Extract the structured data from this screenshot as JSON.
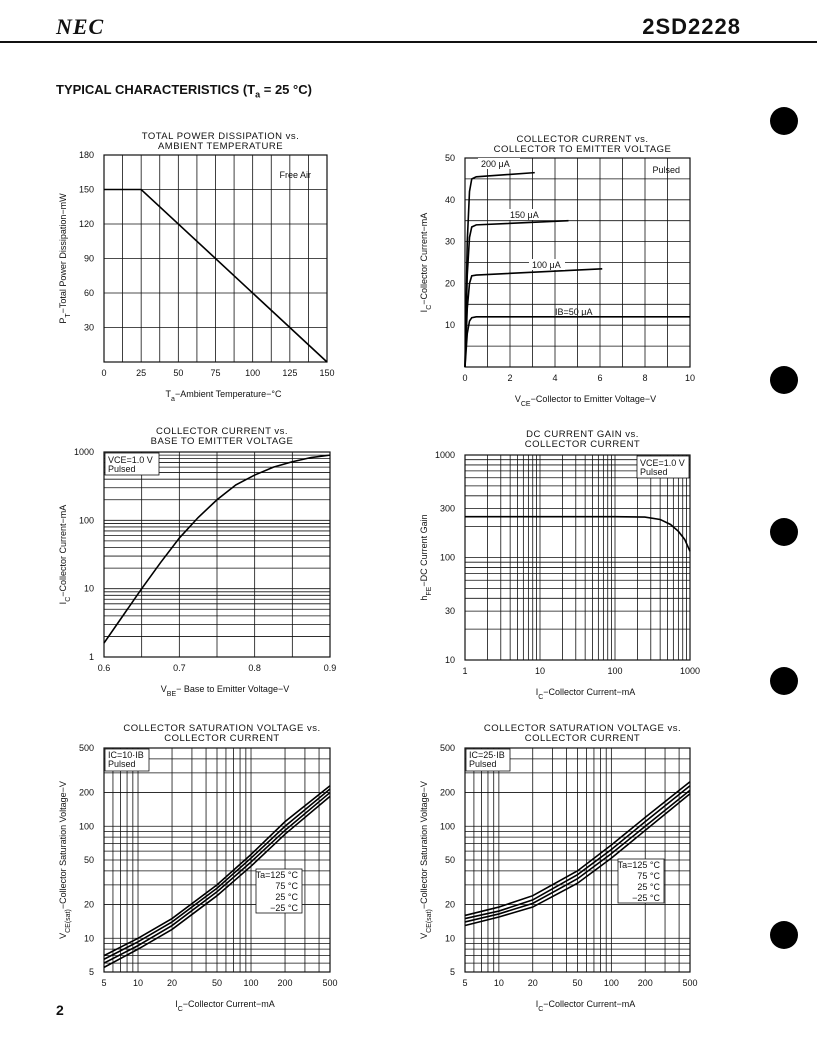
{
  "header": {
    "brand": "NEC",
    "part_number": "2SD2228"
  },
  "section_title": "TYPICAL CHARACTERISTICS (T",
  "section_title_sub": "a",
  "section_title_tail": " = 25 °C)",
  "page_number": "2",
  "chart_data": [
    {
      "id": "power-dissipation",
      "type": "line",
      "title": [
        "TOTAL POWER DISSIPATION vs.",
        "AMBIENT TEMPERATURE"
      ],
      "xlabel": "Ta−Ambient Temperature−°C",
      "ylabel": "PT−Total Power Dissipation−mW",
      "xscale": "linear",
      "yscale": "linear",
      "xlim": [
        0,
        150
      ],
      "ylim": [
        0,
        180
      ],
      "xticks": [
        0,
        25,
        50,
        75,
        100,
        125,
        150
      ],
      "yticks": [
        30,
        60,
        90,
        120,
        150,
        180
      ],
      "annotations": [
        "Free Air"
      ],
      "series": [
        {
          "x": [
            0,
            25,
            150
          ],
          "y": [
            150,
            150,
            0
          ]
        }
      ]
    },
    {
      "id": "ic-vs-vce",
      "type": "line",
      "title": [
        "COLLECTOR CURRENT vs.",
        "COLLECTOR TO EMITTER VOLTAGE"
      ],
      "xlabel": "VCE−Collector to Emitter Voltage−V",
      "ylabel": "IC−Collector Current−mA",
      "xscale": "linear",
      "yscale": "linear",
      "xlim": [
        0,
        10
      ],
      "ylim": [
        0,
        50
      ],
      "xticks": [
        0,
        2,
        4,
        6,
        8,
        10
      ],
      "yticks": [
        10,
        20,
        30,
        40,
        50
      ],
      "annotations": [
        "Pulsed"
      ],
      "series": [
        {
          "name": "IB=50 μA",
          "x": [
            0,
            0.1,
            0.2,
            0.3,
            0.5,
            10
          ],
          "y": [
            0,
            8,
            11,
            11.8,
            12,
            12
          ]
        },
        {
          "name": "100 μA",
          "x": [
            0,
            0.1,
            0.2,
            0.3,
            0.5,
            6.1
          ],
          "y": [
            0,
            14,
            20,
            21.8,
            22,
            23.5
          ]
        },
        {
          "name": "150 μA",
          "x": [
            0,
            0.1,
            0.2,
            0.3,
            0.5,
            4.6
          ],
          "y": [
            0,
            22,
            31,
            33.5,
            34,
            35
          ]
        },
        {
          "name": "200 μA",
          "x": [
            0,
            0.1,
            0.2,
            0.3,
            0.5,
            3.1
          ],
          "y": [
            0,
            30,
            42,
            45,
            45.5,
            46.5
          ]
        }
      ]
    },
    {
      "id": "ic-vs-vbe",
      "type": "line",
      "title": [
        "COLLECTOR CURRENT vs.",
        "BASE TO EMITTER VOLTAGE"
      ],
      "xlabel": "VBE−Base to Emitter Voltage−V",
      "ylabel": "IC−Collector Current−mA",
      "xscale": "linear",
      "yscale": "log",
      "xlim": [
        0.6,
        0.9
      ],
      "ylim": [
        1,
        1000
      ],
      "xticks": [
        0.6,
        0.7,
        0.8,
        0.9
      ],
      "yticks": [
        1,
        10,
        100,
        1000
      ],
      "annotations": [
        "VCE=1.0 V",
        "Pulsed"
      ],
      "series": [
        {
          "x": [
            0.6,
            0.625,
            0.65,
            0.675,
            0.7,
            0.725,
            0.75,
            0.775,
            0.8,
            0.825,
            0.85,
            0.875,
            0.9
          ],
          "y": [
            1.6,
            4,
            10,
            24,
            55,
            110,
            200,
            330,
            460,
            600,
            720,
            830,
            900
          ]
        }
      ]
    },
    {
      "id": "hfe-vs-ic",
      "type": "line",
      "title": [
        "DC CURRENT GAIN vs.",
        "COLLECTOR CURRENT"
      ],
      "xlabel": "IC−Collector Current−mA",
      "ylabel": "hFE−DC Current Gain",
      "xscale": "log",
      "yscale": "log",
      "xlim": [
        1,
        1000
      ],
      "ylim": [
        10,
        1000
      ],
      "xticks": [
        1,
        10,
        100,
        1000
      ],
      "yticks": [
        10,
        30,
        100,
        300,
        1000
      ],
      "annotations": [
        "VCE=1.0 V",
        "Pulsed"
      ],
      "series": [
        {
          "x": [
            1,
            10,
            100,
            250,
            400,
            550,
            700,
            850,
            1000
          ],
          "y": [
            250,
            250,
            250,
            248,
            235,
            210,
            180,
            150,
            115
          ]
        }
      ]
    },
    {
      "id": "vcesat-ib10",
      "type": "line",
      "title": [
        "COLLECTOR SATURATION VOLTAGE vs.",
        "COLLECTOR CURRENT"
      ],
      "xlabel": "IC−Collector Current−mA",
      "ylabel": "VCE(sat)−Collector Saturation Voltage−V",
      "xscale": "log",
      "yscale": "log",
      "xlim": [
        5,
        500
      ],
      "ylim": [
        5,
        500
      ],
      "xticks": [
        5,
        10,
        20,
        50,
        100,
        200,
        500
      ],
      "yticks": [
        5,
        10,
        20,
        50,
        100,
        200,
        500
      ],
      "annotations": [
        "IC=10·IB",
        "Pulsed"
      ],
      "series": [
        {
          "name": "Ta=125 °C",
          "x": [
            5,
            10,
            20,
            50,
            100,
            200,
            500
          ],
          "y": [
            7,
            10,
            15,
            30,
            56,
            110,
            230
          ]
        },
        {
          "name": "75 °C",
          "x": [
            5,
            10,
            20,
            50,
            100,
            200,
            500
          ],
          "y": [
            6.5,
            9.3,
            14,
            28,
            52,
            100,
            215
          ]
        },
        {
          "name": "25 °C",
          "x": [
            5,
            10,
            20,
            50,
            100,
            200,
            500
          ],
          "y": [
            6,
            8.6,
            13,
            26,
            48,
            92,
            200
          ]
        },
        {
          "name": "−25 °C",
          "x": [
            5,
            10,
            20,
            50,
            100,
            200,
            500
          ],
          "y": [
            5.5,
            8,
            12,
            24,
            44,
            85,
            185
          ]
        }
      ]
    },
    {
      "id": "vcesat-ib25",
      "type": "line",
      "title": [
        "COLLECTOR SATURATION VOLTAGE vs.",
        "COLLECTOR CURRENT"
      ],
      "xlabel": "IC−Collector Current−mA",
      "ylabel": "VCE(sat)−Collector Saturation Voltage−V",
      "xscale": "log",
      "yscale": "log",
      "xlim": [
        5,
        500
      ],
      "ylim": [
        5,
        500
      ],
      "xticks": [
        5,
        10,
        20,
        50,
        100,
        200,
        500
      ],
      "yticks": [
        5,
        10,
        20,
        50,
        100,
        200,
        500
      ],
      "annotations": [
        "IC=25·IB",
        "Pulsed"
      ],
      "series": [
        {
          "name": "Ta=125 °C",
          "x": [
            5,
            10,
            20,
            50,
            100,
            200,
            500
          ],
          "y": [
            16,
            19,
            24,
            40,
            68,
            120,
            250
          ]
        },
        {
          "name": "75 °C",
          "x": [
            5,
            10,
            20,
            50,
            100,
            200,
            500
          ],
          "y": [
            15,
            17.5,
            22,
            37,
            62,
            110,
            230
          ]
        },
        {
          "name": "25 °C",
          "x": [
            5,
            10,
            20,
            50,
            100,
            200,
            500
          ],
          "y": [
            14,
            16.5,
            20.5,
            34,
            57,
            100,
            210
          ]
        },
        {
          "name": "−25 °C",
          "x": [
            5,
            10,
            20,
            50,
            100,
            200,
            500
          ],
          "y": [
            13,
            15.5,
            19,
            31,
            52,
            92,
            195
          ]
        }
      ]
    }
  ],
  "text_labels": {
    "c0": {
      "xlabel_parts": [
        "T",
        "a",
        "−Ambient Temperature−°C"
      ],
      "ylabel_parts": [
        "P",
        "T",
        "−Total Power Dissipation−mW"
      ]
    },
    "c1": {
      "xlabel_parts": [
        "V",
        "CE",
        "−Collector to Emitter Voltage−V"
      ],
      "ylabel_parts": [
        "I",
        "C",
        "−Collector Current−mA"
      ],
      "curve_labels": [
        "200 μA",
        "150 μA",
        "100 μA",
        "IB=50 μA"
      ]
    },
    "c2": {
      "xlabel_parts": [
        "V",
        "BE",
        "− Base to Emitter Voltage−V"
      ],
      "ylabel_parts": [
        "I",
        "C",
        "−Collector Current−mA"
      ]
    },
    "c3": {
      "xlabel_parts": [
        "I",
        "C",
        "−Collector Current−mA"
      ],
      "ylabel_parts": [
        "h",
        "FE",
        "−DC Current Gain"
      ]
    },
    "c4": {
      "xlabel_parts": [
        "I",
        "C",
        "−Collector Current−mA"
      ],
      "ylabel_parts": [
        "V",
        "CE(sat)",
        "−Collector Saturation Voltage−V"
      ]
    },
    "c5": {
      "xlabel_parts": [
        "I",
        "C",
        "−Collector Current−mA"
      ],
      "ylabel_parts": [
        "V",
        "CE(sat)",
        "−Collector Saturation Voltage−V"
      ]
    }
  }
}
